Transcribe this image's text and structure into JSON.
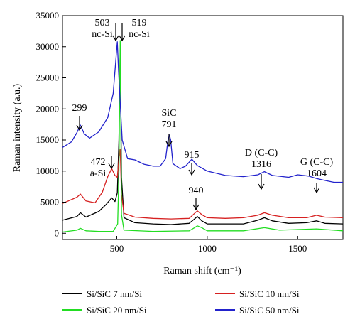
{
  "chart_data": {
    "type": "line",
    "xlabel": "Raman shift (cm⁻¹)",
    "ylabel": "Raman intensity (a.u.)",
    "xlim": [
      200,
      1750
    ],
    "ylim": [
      -1000,
      35000
    ],
    "x_ticks": [
      500,
      1000,
      1500
    ],
    "y_ticks": [
      0,
      5000,
      10000,
      15000,
      20000,
      25000,
      30000,
      35000
    ],
    "grid": false,
    "legend_position": "below plot",
    "series": [
      {
        "name": "Si/SiC 7 nm/Si",
        "color": "#000000",
        "points": [
          [
            200,
            2100
          ],
          [
            280,
            2700
          ],
          [
            299,
            3300
          ],
          [
            330,
            2600
          ],
          [
            400,
            3500
          ],
          [
            440,
            4600
          ],
          [
            472,
            5700
          ],
          [
            490,
            5100
          ],
          [
            503,
            6500
          ],
          [
            512,
            15000
          ],
          [
            519,
            29500
          ],
          [
            526,
            9000
          ],
          [
            540,
            2500
          ],
          [
            600,
            1700
          ],
          [
            700,
            1500
          ],
          [
            800,
            1400
          ],
          [
            900,
            1600
          ],
          [
            930,
            2300
          ],
          [
            945,
            2700
          ],
          [
            970,
            2000
          ],
          [
            1000,
            1500
          ],
          [
            1100,
            1500
          ],
          [
            1200,
            1500
          ],
          [
            1280,
            2100
          ],
          [
            1316,
            2500
          ],
          [
            1360,
            2000
          ],
          [
            1450,
            1600
          ],
          [
            1550,
            1700
          ],
          [
            1604,
            2000
          ],
          [
            1650,
            1600
          ],
          [
            1750,
            1500
          ]
        ]
      },
      {
        "name": "Si/SiC 10 nm/Si",
        "color": "#d62020",
        "points": [
          [
            200,
            4800
          ],
          [
            280,
            5800
          ],
          [
            299,
            6300
          ],
          [
            330,
            5200
          ],
          [
            380,
            4900
          ],
          [
            420,
            6600
          ],
          [
            450,
            9100
          ],
          [
            472,
            10400
          ],
          [
            490,
            9300
          ],
          [
            503,
            9000
          ],
          [
            512,
            12000
          ],
          [
            519,
            13500
          ],
          [
            526,
            6200
          ],
          [
            540,
            3200
          ],
          [
            600,
            2600
          ],
          [
            700,
            2400
          ],
          [
            800,
            2300
          ],
          [
            900,
            2400
          ],
          [
            930,
            3200
          ],
          [
            945,
            3600
          ],
          [
            970,
            3000
          ],
          [
            1000,
            2500
          ],
          [
            1100,
            2400
          ],
          [
            1200,
            2500
          ],
          [
            1280,
            2900
          ],
          [
            1316,
            3300
          ],
          [
            1360,
            2900
          ],
          [
            1450,
            2500
          ],
          [
            1550,
            2500
          ],
          [
            1604,
            2900
          ],
          [
            1650,
            2600
          ],
          [
            1750,
            2500
          ]
        ]
      },
      {
        "name": "Si/SiC 20 nm/Si",
        "color": "#22dd22",
        "points": [
          [
            200,
            200
          ],
          [
            280,
            500
          ],
          [
            299,
            800
          ],
          [
            330,
            400
          ],
          [
            400,
            300
          ],
          [
            480,
            300
          ],
          [
            505,
            1500
          ],
          [
            512,
            10000
          ],
          [
            519,
            31000
          ],
          [
            526,
            3000
          ],
          [
            540,
            500
          ],
          [
            700,
            300
          ],
          [
            900,
            400
          ],
          [
            930,
            900
          ],
          [
            945,
            1200
          ],
          [
            970,
            900
          ],
          [
            1000,
            400
          ],
          [
            1200,
            400
          ],
          [
            1316,
            900
          ],
          [
            1400,
            500
          ],
          [
            1604,
            700
          ],
          [
            1750,
            400
          ]
        ]
      },
      {
        "name": "Si/SiC 50 nm/Si",
        "color": "#2222cc",
        "points": [
          [
            200,
            13800
          ],
          [
            250,
            14700
          ],
          [
            280,
            16200
          ],
          [
            299,
            17400
          ],
          [
            320,
            16000
          ],
          [
            350,
            15300
          ],
          [
            400,
            16300
          ],
          [
            450,
            18600
          ],
          [
            480,
            22500
          ],
          [
            495,
            28000
          ],
          [
            503,
            30800
          ],
          [
            510,
            26000
          ],
          [
            530,
            15000
          ],
          [
            560,
            12000
          ],
          [
            600,
            11800
          ],
          [
            650,
            11100
          ],
          [
            700,
            10800
          ],
          [
            740,
            10800
          ],
          [
            770,
            12000
          ],
          [
            783,
            15000
          ],
          [
            791,
            15800
          ],
          [
            798,
            15000
          ],
          [
            810,
            11200
          ],
          [
            850,
            10400
          ],
          [
            880,
            10800
          ],
          [
            915,
            11900
          ],
          [
            945,
            10900
          ],
          [
            1000,
            10000
          ],
          [
            1100,
            9300
          ],
          [
            1200,
            9100
          ],
          [
            1280,
            9400
          ],
          [
            1316,
            9900
          ],
          [
            1360,
            9300
          ],
          [
            1450,
            9000
          ],
          [
            1500,
            9400
          ],
          [
            1560,
            9200
          ],
          [
            1604,
            8800
          ],
          [
            1650,
            8500
          ],
          [
            1700,
            8200
          ],
          [
            1750,
            8200
          ]
        ]
      }
    ],
    "annotations": [
      {
        "lines": [
          "503",
          "nc-Si"
        ],
        "x": 503
      },
      {
        "lines": [
          "519",
          "nc-Si"
        ],
        "x": 519
      },
      {
        "lines": [
          "299"
        ],
        "x": 299
      },
      {
        "lines": [
          "472",
          "a-Si"
        ],
        "x": 472
      },
      {
        "lines": [
          "SiC",
          "791"
        ],
        "x": 791
      },
      {
        "lines": [
          "915"
        ],
        "x": 915
      },
      {
        "lines": [
          "940"
        ],
        "x": 940
      },
      {
        "lines": [
          "D (C-C)",
          "1316"
        ],
        "x": 1316
      },
      {
        "lines": [
          "G (C-C)",
          "1604"
        ],
        "x": 1604
      }
    ]
  }
}
